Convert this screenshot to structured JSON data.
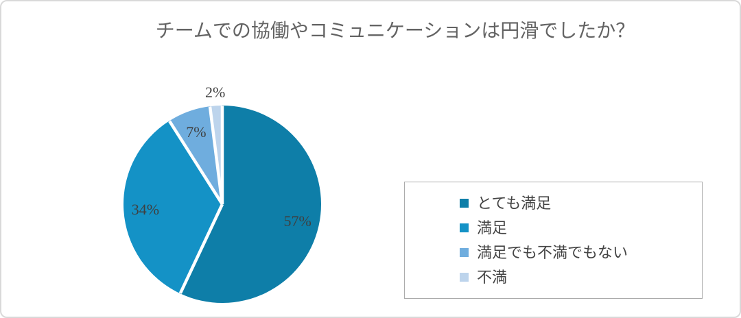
{
  "chart_data": {
    "type": "pie",
    "title": "チームでの協働やコミュニケーションは円滑でしたか？",
    "categories": [
      "とても満足",
      "満足",
      "満足でも不満でもない",
      "不満"
    ],
    "values": [
      57,
      34,
      7,
      2
    ],
    "labels": [
      "57%",
      "34%",
      "7%",
      "2%"
    ],
    "colors": [
      "#0E7EA8",
      "#1492C6",
      "#6FADDE",
      "#BDD4EC"
    ],
    "label_placement": [
      "inside",
      "inside",
      "inside",
      "outside"
    ],
    "start_angle_deg": 0,
    "direction": "clockwise",
    "slice_separator_color": "#FFFFFF",
    "legend_position": "right",
    "title_color": "#636363",
    "label_color": "#3F3F3F",
    "legend_text_color": "#444444",
    "legend_border_color": "#ABABAB"
  }
}
